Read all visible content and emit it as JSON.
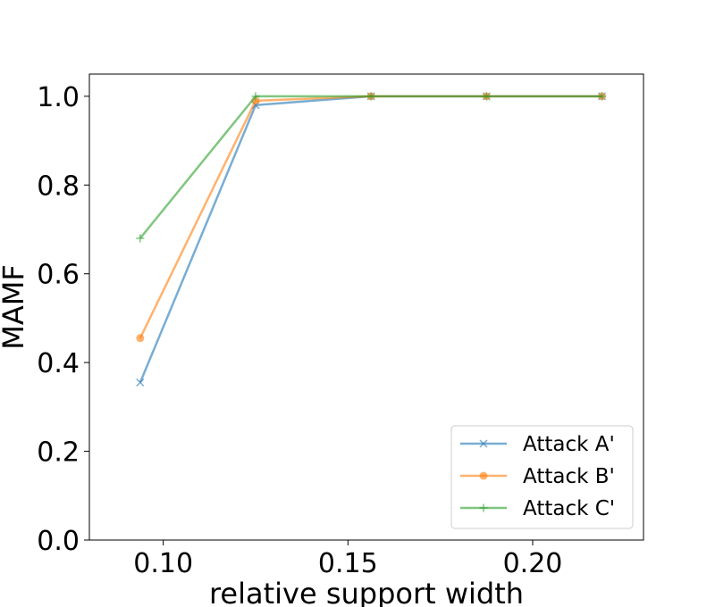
{
  "chart_data": {
    "type": "line",
    "title": "",
    "xlabel": "relative support width",
    "ylabel": "MAMF",
    "xlim": [
      0.08,
      0.23
    ],
    "ylim": [
      0.0,
      1.05
    ],
    "x_ticks": [
      0.1,
      0.15,
      0.2
    ],
    "x_tick_labels": [
      "0.10",
      "0.15",
      "0.20"
    ],
    "y_ticks": [
      0.0,
      0.2,
      0.4,
      0.6,
      0.8,
      1.0
    ],
    "y_tick_labels": [
      "0.0",
      "0.2",
      "0.4",
      "0.6",
      "0.8",
      "1.0"
    ],
    "grid": false,
    "legend_position": "lower-right",
    "x": [
      0.09375,
      0.125,
      0.15625,
      0.1875,
      0.21875
    ],
    "series": [
      {
        "name": "Attack A'",
        "color": "#1f77b4",
        "marker": "x",
        "values": [
          0.355,
          0.98,
          1.0,
          1.0,
          1.0
        ]
      },
      {
        "name": "Attack B'",
        "color": "#ff7f0e",
        "marker": "o",
        "values": [
          0.455,
          0.99,
          1.0,
          1.0,
          1.0
        ]
      },
      {
        "name": "Attack C'",
        "color": "#2ca02c",
        "marker": "+",
        "values": [
          0.68,
          1.0,
          1.0,
          1.0,
          1.0
        ]
      }
    ]
  }
}
